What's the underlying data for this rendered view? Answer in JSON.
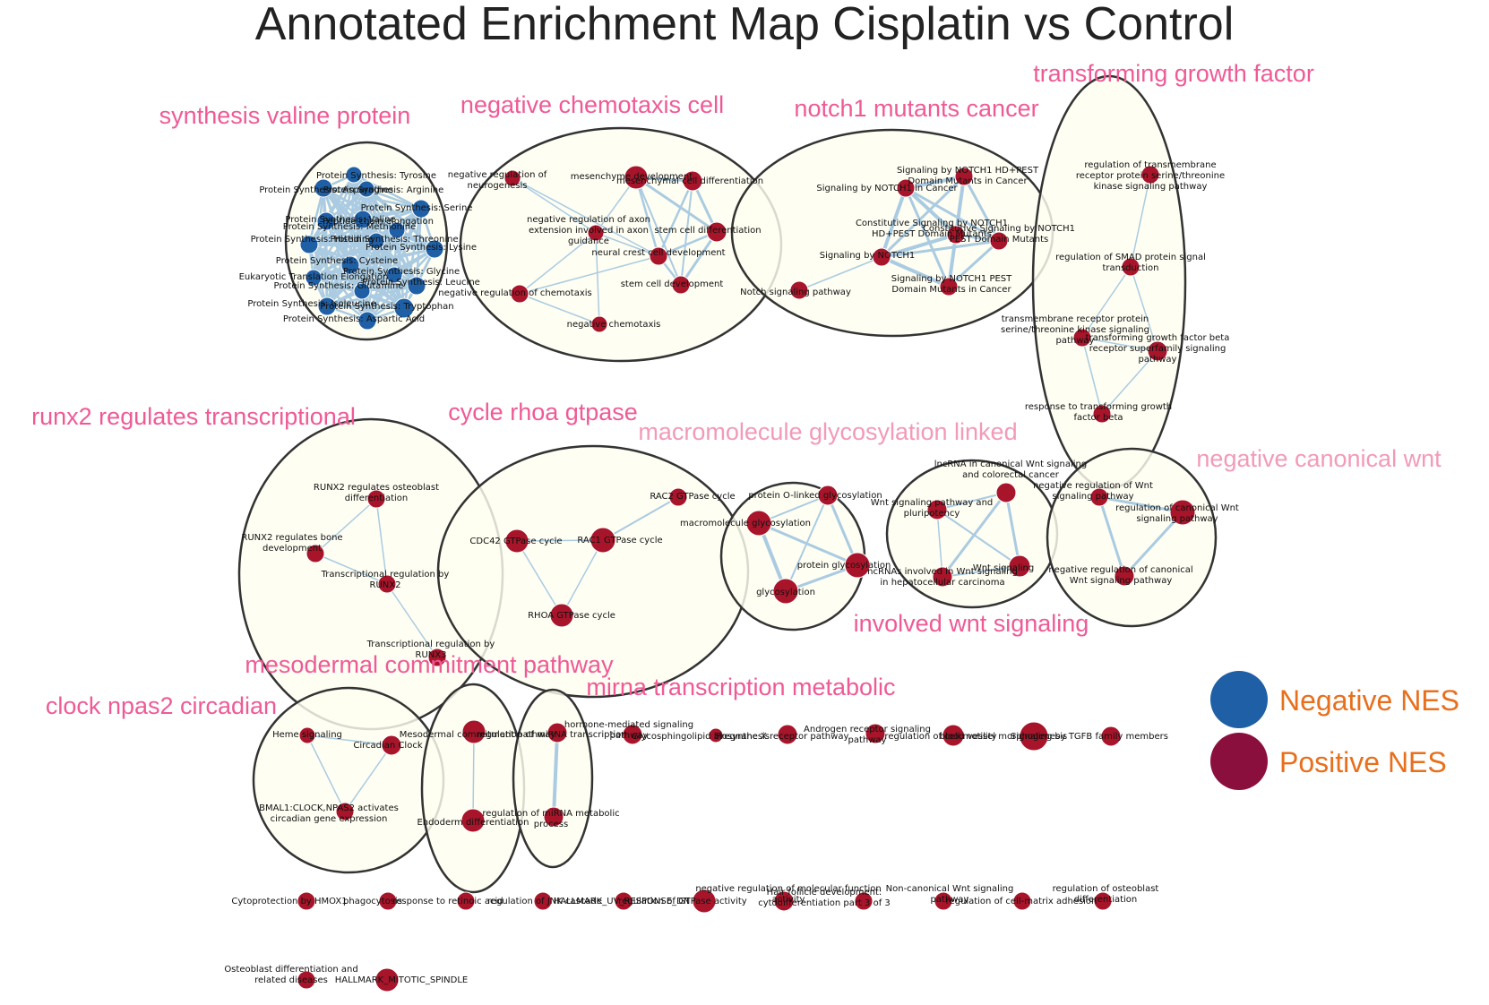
{
  "title": "Annotated Enrichment Map Cisplatin vs Control",
  "colors": {
    "negative": "#1f5fa5",
    "positive": "#a8152a",
    "label_pink": "#ef5a96",
    "label_pink_light": "#f29ab8",
    "legend_text": "#e86f1c",
    "edge": "#aacbe1"
  },
  "legend": {
    "negative_label": "Negative NES",
    "positive_label": "Positive NES"
  },
  "clusters": [
    {
      "id": "c-protein",
      "label": "synthesis valine protein"
    },
    {
      "id": "c-chemo",
      "label": "negative chemotaxis cell"
    },
    {
      "id": "c-notch",
      "label": "notch1 mutants cancer"
    },
    {
      "id": "c-tgf",
      "label": "transforming growth factor"
    },
    {
      "id": "c-runx",
      "label": "runx2 regulates transcriptional"
    },
    {
      "id": "c-rho",
      "label": "cycle rhoa gtpase"
    },
    {
      "id": "c-glyco",
      "label": "macromolecule glycosylation linked"
    },
    {
      "id": "c-lnc",
      "label": "involved wnt signaling"
    },
    {
      "id": "c-wnt",
      "label": "negative canonical wnt"
    },
    {
      "id": "c-clock",
      "label": "clock npas2 circadian"
    },
    {
      "id": "c-meso",
      "label": "mesodermal commitment pathway"
    },
    {
      "id": "c-mirna",
      "label": "mirna transcription metabolic"
    }
  ],
  "nodes": [
    {
      "id": "p-tyr",
      "label": "Protein Synthesis: Tyrosine",
      "nes": "negative"
    },
    {
      "id": "p-asn",
      "label": "Protein Synthesis: Asparagine",
      "nes": "negative"
    },
    {
      "id": "p-arg",
      "label": "Protein Synthesis: Arginine",
      "nes": "negative"
    },
    {
      "id": "p-ser",
      "label": "Protein Synthesis: Serine",
      "nes": "negative"
    },
    {
      "id": "p-val",
      "label": "Protein Synthesis: Valine",
      "nes": "negative"
    },
    {
      "id": "p-elong",
      "label": "Peptide chain elongation",
      "nes": "negative"
    },
    {
      "id": "p-met",
      "label": "Protein Synthesis: Methionine",
      "nes": "negative"
    },
    {
      "id": "p-his",
      "label": "Protein Synthesis: Histidine",
      "nes": "negative"
    },
    {
      "id": "p-thr",
      "label": "Protein Synthesis: Threonine",
      "nes": "negative"
    },
    {
      "id": "p-lys",
      "label": "Protein Synthesis: Lysine",
      "nes": "negative"
    },
    {
      "id": "p-cys",
      "label": "Protein Synthesis: Cysteine",
      "nes": "negative"
    },
    {
      "id": "p-gly",
      "label": "Protein Synthesis: Glycine",
      "nes": "negative"
    },
    {
      "id": "p-elong2",
      "label": "Eukaryotic Translation Elongation",
      "nes": "negative"
    },
    {
      "id": "p-leu",
      "label": "Protein Synthesis: Leucine",
      "nes": "negative"
    },
    {
      "id": "p-glu",
      "label": "Protein Synthesis: Glutamine",
      "nes": "negative"
    },
    {
      "id": "p-ile",
      "label": "Protein Synthesis: Isoleucine",
      "nes": "negative"
    },
    {
      "id": "p-trp",
      "label": "Protein Synthesis: Tryptophan",
      "nes": "negative"
    },
    {
      "id": "p-asp",
      "label": "Protein Synthesis: Aspartic Acid",
      "nes": "negative"
    },
    {
      "id": "n-neuro",
      "label": "negative regulation of neurogenesis",
      "nes": "positive"
    },
    {
      "id": "n-mes-dev",
      "label": "mesenchyme development",
      "nes": "positive"
    },
    {
      "id": "n-mes-diff",
      "label": "mesenchymal cell differentiation",
      "nes": "positive"
    },
    {
      "id": "n-axon",
      "label": "negative regulation of axon extension involved in axon guidance",
      "nes": "positive"
    },
    {
      "id": "n-ncc",
      "label": "neural crest cell development",
      "nes": "positive"
    },
    {
      "id": "n-stem-diff",
      "label": "stem cell differentiation",
      "nes": "positive"
    },
    {
      "id": "n-stem-dev",
      "label": "stem cell development",
      "nes": "positive"
    },
    {
      "id": "n-neg-chemo-reg",
      "label": "negative regulation of chemotaxis",
      "nes": "positive"
    },
    {
      "id": "n-neg-chemo",
      "label": "negative chemotaxis",
      "nes": "positive"
    },
    {
      "id": "no-hdpest",
      "label": "Signaling by NOTCH1 HD+PEST Domain Mutants in Cancer",
      "nes": "positive"
    },
    {
      "id": "no-cancer",
      "label": "Signaling by NOTCH1 in Cancer",
      "nes": "positive"
    },
    {
      "id": "no-const-hd",
      "label": "Constitutive Signaling by NOTCH1 HD+PEST Domain Mutants",
      "nes": "positive"
    },
    {
      "id": "no-const-pest",
      "label": "Constitutive Signaling by NOTCH1 PEST Domain Mutants",
      "nes": "positive"
    },
    {
      "id": "no-sig",
      "label": "Signaling by NOTCH1",
      "nes": "positive"
    },
    {
      "id": "no-pest",
      "label": "Signaling by NOTCH1 PEST Domain Mutants in Cancer",
      "nes": "positive"
    },
    {
      "id": "no-path",
      "label": "Notch signaling pathway",
      "nes": "positive"
    },
    {
      "id": "t-reg-tm",
      "label": "regulation of transmembrane receptor protein serine/threonine kinase signaling pathway",
      "nes": "positive"
    },
    {
      "id": "t-smad",
      "label": "regulation of SMAD protein signal transduction",
      "nes": "positive"
    },
    {
      "id": "t-tm",
      "label": "transmembrane receptor protein serine/threonine kinase signaling pathway",
      "nes": "positive"
    },
    {
      "id": "t-tgfb-path",
      "label": "transforming growth factor beta receptor superfamily signaling pathway",
      "nes": "positive"
    },
    {
      "id": "t-resp",
      "label": "response to transforming growth factor beta",
      "nes": "positive"
    },
    {
      "id": "r-osteo",
      "label": "RUNX2 regulates osteoblast differentiation",
      "nes": "positive"
    },
    {
      "id": "r-bone",
      "label": "RUNX2 regulates bone development",
      "nes": "positive"
    },
    {
      "id": "r-tr2",
      "label": "Transcriptional regulation by RUNX2",
      "nes": "positive"
    },
    {
      "id": "r-tr3",
      "label": "Transcriptional regulation by RUNX3",
      "nes": "positive"
    },
    {
      "id": "g-rac2",
      "label": "RAC2 GTPase cycle",
      "nes": "positive"
    },
    {
      "id": "g-cdc42",
      "label": "CDC42 GTPase cycle",
      "nes": "positive"
    },
    {
      "id": "g-rac1",
      "label": "RAC1 GTPase cycle",
      "nes": "positive"
    },
    {
      "id": "g-rhoa",
      "label": "RHOA GTPase cycle",
      "nes": "positive"
    },
    {
      "id": "gl-oglc",
      "label": "protein O-linked glycosylation",
      "nes": "positive"
    },
    {
      "id": "gl-macro",
      "label": "macromolecule glycosylation",
      "nes": "positive"
    },
    {
      "id": "gl-prot",
      "label": "protein glycosylation",
      "nes": "positive"
    },
    {
      "id": "gl-gly",
      "label": "glycosylation",
      "nes": "positive"
    },
    {
      "id": "l-lnc-canon",
      "label": "lncRNA in canonical Wnt signaling and colorectal cancer",
      "nes": "positive"
    },
    {
      "id": "l-wnt-pluri",
      "label": "Wnt signaling pathway and pluripotency",
      "nes": "positive"
    },
    {
      "id": "l-wnt",
      "label": "Wnt signaling",
      "nes": "positive"
    },
    {
      "id": "l-ncrna",
      "label": "ncRNAs involved in Wnt signaling in hepatocellular carcinoma",
      "nes": "positive"
    },
    {
      "id": "w-neg-reg",
      "label": "negative regulation of Wnt signaling pathway",
      "nes": "positive"
    },
    {
      "id": "w-reg-canon",
      "label": "regulation of canonical Wnt signaling pathway",
      "nes": "positive"
    },
    {
      "id": "w-neg-canon",
      "label": "negative regulation of canonical Wnt signaling pathway",
      "nes": "positive"
    },
    {
      "id": "cl-heme",
      "label": "Heme signaling",
      "nes": "positive"
    },
    {
      "id": "cl-clock",
      "label": "Circadian Clock",
      "nes": "positive"
    },
    {
      "id": "cl-bmal",
      "label": "BMAL1:CLOCK,NPAS2 activates circadian gene expression",
      "nes": "positive"
    },
    {
      "id": "m-meso",
      "label": "Mesodermal commitment pathway",
      "nes": "positive"
    },
    {
      "id": "m-endo",
      "label": "Endoderm differentiation",
      "nes": "positive"
    },
    {
      "id": "mi-reg-trans",
      "label": "regulation of miRNA transcription",
      "nes": "positive"
    },
    {
      "id": "mi-reg-meta",
      "label": "regulation of miRNA metabolic process",
      "nes": "positive"
    },
    {
      "id": "s-horm",
      "label": "hormone-mediated signaling pathway",
      "nes": "positive"
    },
    {
      "id": "s-glyco",
      "label": "Glycosphingolipid biosynthesis",
      "nes": "positive"
    },
    {
      "id": "s-preg",
      "label": "Pregnane X receptor pathway",
      "nes": "positive"
    },
    {
      "id": "s-andro",
      "label": "Androgen receptor signaling pathway",
      "nes": "positive"
    },
    {
      "id": "s-cellmot",
      "label": "regulation of cell motility",
      "nes": "positive"
    },
    {
      "id": "s-vessel",
      "label": "blood vessel morphogenesis",
      "nes": "positive"
    },
    {
      "id": "s-tgfb-fam",
      "label": "Signaling by TGFB family members",
      "nes": "positive"
    },
    {
      "id": "s-hmox",
      "label": "Cytoprotection by HMOX1",
      "nes": "positive"
    },
    {
      "id": "s-phago",
      "label": "phagocytosis",
      "nes": "positive"
    },
    {
      "id": "s-retinoic",
      "label": "response to retinoic acid",
      "nes": "positive"
    },
    {
      "id": "s-jnk",
      "label": "regulation of JNK cascade",
      "nes": "positive"
    },
    {
      "id": "s-uv",
      "label": "HALLMARK_UV_RESPONSE_DN",
      "nes": "positive"
    },
    {
      "id": "s-gtpase",
      "label": "regulation of GTPase activity",
      "nes": "positive"
    },
    {
      "id": "s-neg-act",
      "label": "negative regulation of molecular function activity",
      "nes": "positive"
    },
    {
      "id": "s-hair",
      "label": "Hair follicle development: cytodifferentiation part 3 of 3",
      "nes": "positive"
    },
    {
      "id": "s-noncanon",
      "label": "Non-canonical Wnt signaling pathway",
      "nes": "positive"
    },
    {
      "id": "s-matrix",
      "label": "regulation of cell-matrix adhesion",
      "nes": "positive"
    },
    {
      "id": "s-osteo-reg",
      "label": "regulation of osteoblast differentiation",
      "nes": "positive"
    },
    {
      "id": "s-osteo-dis",
      "label": "Osteoblast differentiation and related diseases",
      "nes": "positive"
    },
    {
      "id": "s-mitotic",
      "label": "HALLMARK_MITOTIC_SPINDLE",
      "nes": "positive"
    }
  ]
}
